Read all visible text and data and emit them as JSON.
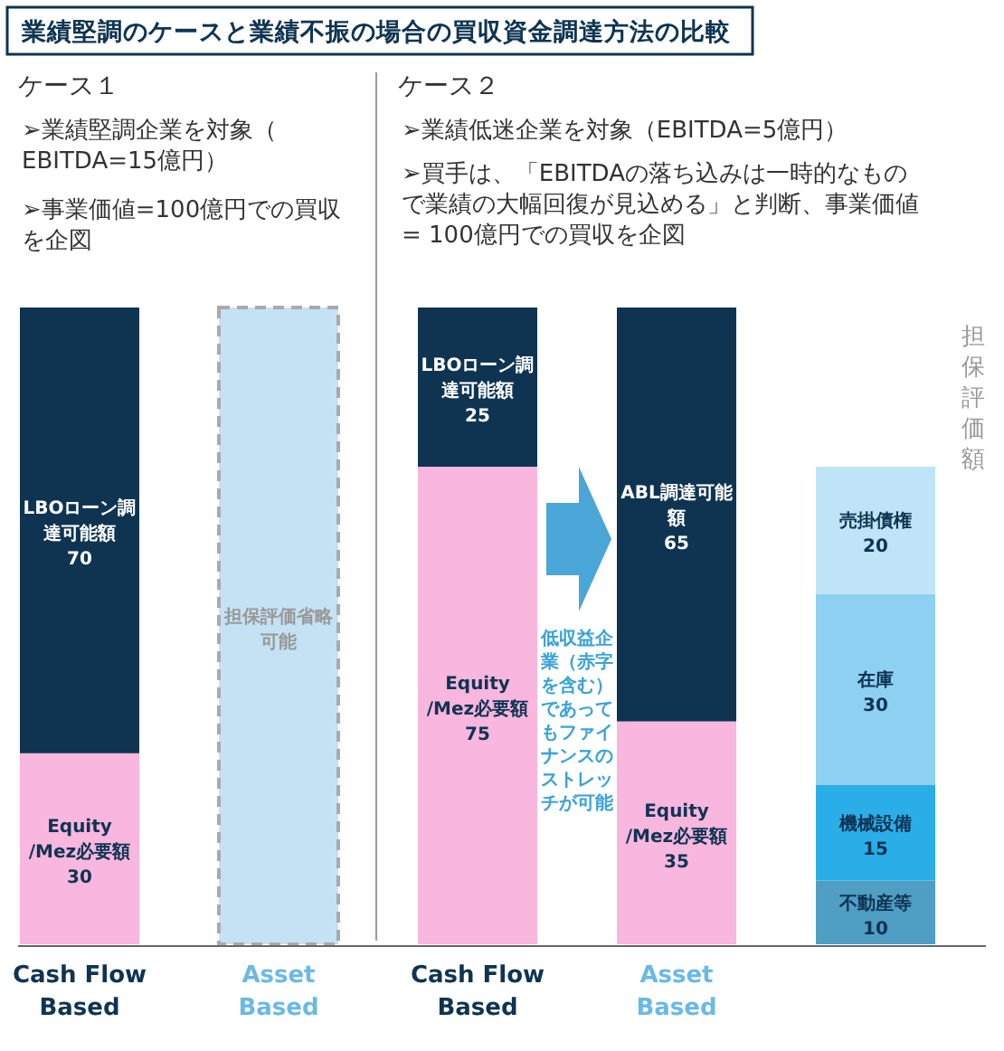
{
  "chart_data": {
    "type": "bar",
    "stacked": true,
    "title": "業績堅調のケースと業績不振の場合の買収資金調達方法の比較",
    "categories": [
      "Cash Flow Based",
      "Asset Based",
      "Cash Flow Based",
      "Asset Based",
      null
    ],
    "ylim": [
      0,
      100
    ],
    "tick_labels": "x",
    "grid": false,
    "series": [
      {
        "name": "Equity /Mez必要額",
        "color": "#f9b6de",
        "values": [
          30,
          null,
          75,
          35,
          null
        ],
        "value_labels": [
          "30",
          null,
          "75",
          "35",
          null
        ]
      },
      {
        "name": "LBOローン調達可能額",
        "color": "#0e3452",
        "values": [
          70,
          null,
          25,
          null,
          null
        ],
        "value_labels": [
          "70",
          null,
          "25",
          null,
          null
        ]
      },
      {
        "name": "ABL調達可能額",
        "color": "#0e3452",
        "values": [
          null,
          null,
          null,
          65,
          null
        ],
        "value_labels": [
          null,
          null,
          null,
          "65",
          null
        ]
      },
      {
        "name": "担保評価省略可能",
        "color": "#c4e2f3",
        "line_style": "dashed",
        "values": [
          null,
          100,
          null,
          null,
          null
        ],
        "value_labels": [
          null,
          null,
          null,
          null,
          null
        ]
      },
      {
        "name": "不動産等",
        "color": "#4f9ec4",
        "values": [
          null,
          null,
          null,
          null,
          10
        ],
        "value_labels": [
          null,
          null,
          null,
          null,
          "10"
        ]
      },
      {
        "name": "機械設備",
        "color": "#2aaee8",
        "values": [
          null,
          null,
          null,
          null,
          15
        ],
        "value_labels": [
          null,
          null,
          null,
          null,
          "15"
        ]
      },
      {
        "name": "在庫",
        "color": "#8ed0f2",
        "values": [
          null,
          null,
          null,
          null,
          30
        ],
        "value_labels": [
          null,
          null,
          null,
          null,
          "30"
        ]
      },
      {
        "name": "売掛債権",
        "color": "#bfe4f7",
        "values": [
          null,
          null,
          null,
          null,
          20
        ],
        "value_labels": [
          null,
          null,
          null,
          null,
          "20"
        ]
      }
    ],
    "annotations": [
      "ケース１",
      "➢業績堅調企業を対象（EBITDA=15億円）",
      "➢事業価値=100億円での買収を企図",
      "ケース２",
      "➢業績低迷企業を対象（EBITDA=5億円）",
      "➢買手は、「EBITDAの落ち込みは一時的なもので業績の大幅回復が見込める」と判断、事業価値= 100億円での買収を企図",
      "低収益企業（赤字を含む）であってもファイナンスのストレッチが可能",
      "担保評価額"
    ]
  }
}
